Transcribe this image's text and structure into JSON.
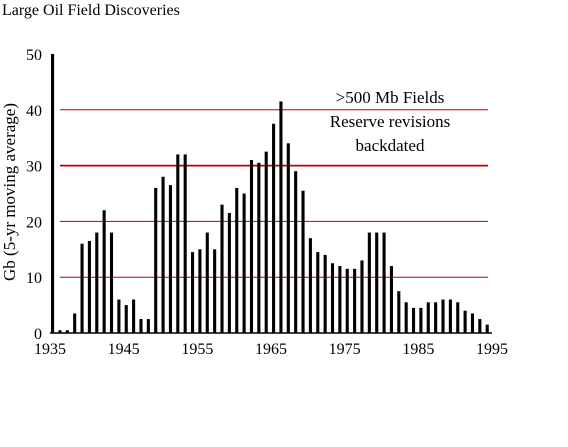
{
  "chart_data": {
    "type": "bar",
    "title": "Large Oil Field Discoveries",
    "xlabel": "",
    "ylabel": "Gb (5-yr moving average)",
    "xlim": [
      1935,
      1995
    ],
    "ylim": [
      0,
      50
    ],
    "x_ticks": [
      1935,
      1945,
      1955,
      1965,
      1975,
      1985,
      1995
    ],
    "y_ticks": [
      0,
      10,
      20,
      30,
      40,
      50
    ],
    "grid": {
      "horizontal": true,
      "vertical": false,
      "color": "#c00000"
    },
    "bar_color": "#000000",
    "annotation_lines": [
      ">500 Mb Fields",
      "Reserve revisions",
      "backdated"
    ],
    "x": [
      1935,
      1936,
      1937,
      1938,
      1939,
      1940,
      1941,
      1942,
      1943,
      1944,
      1945,
      1946,
      1947,
      1948,
      1949,
      1950,
      1951,
      1952,
      1953,
      1954,
      1955,
      1956,
      1957,
      1958,
      1959,
      1960,
      1961,
      1962,
      1963,
      1964,
      1965,
      1966,
      1967,
      1968,
      1969,
      1970,
      1971,
      1972,
      1973,
      1974,
      1975,
      1976,
      1977,
      1978,
      1979,
      1980,
      1981,
      1982,
      1983,
      1984,
      1985,
      1986,
      1987,
      1988,
      1989,
      1990,
      1991,
      1992,
      1993,
      1994
    ],
    "values": [
      50,
      0.5,
      0.5,
      3.5,
      16,
      16.5,
      18,
      22,
      18,
      6,
      5,
      6,
      2.5,
      2.5,
      26,
      28,
      26.5,
      32,
      32,
      14.5,
      15,
      18,
      15,
      23,
      21.5,
      26,
      25,
      31,
      30.5,
      32.5,
      37.5,
      41.5,
      34,
      29,
      25.5,
      17,
      14.5,
      14,
      12.5,
      12,
      11.5,
      11.5,
      13,
      18,
      18,
      18,
      12,
      7.5,
      5.5,
      4.5,
      4.5,
      5.5,
      5.5,
      6,
      6,
      5.5,
      4,
      3.5,
      2.5,
      1.5
    ]
  }
}
